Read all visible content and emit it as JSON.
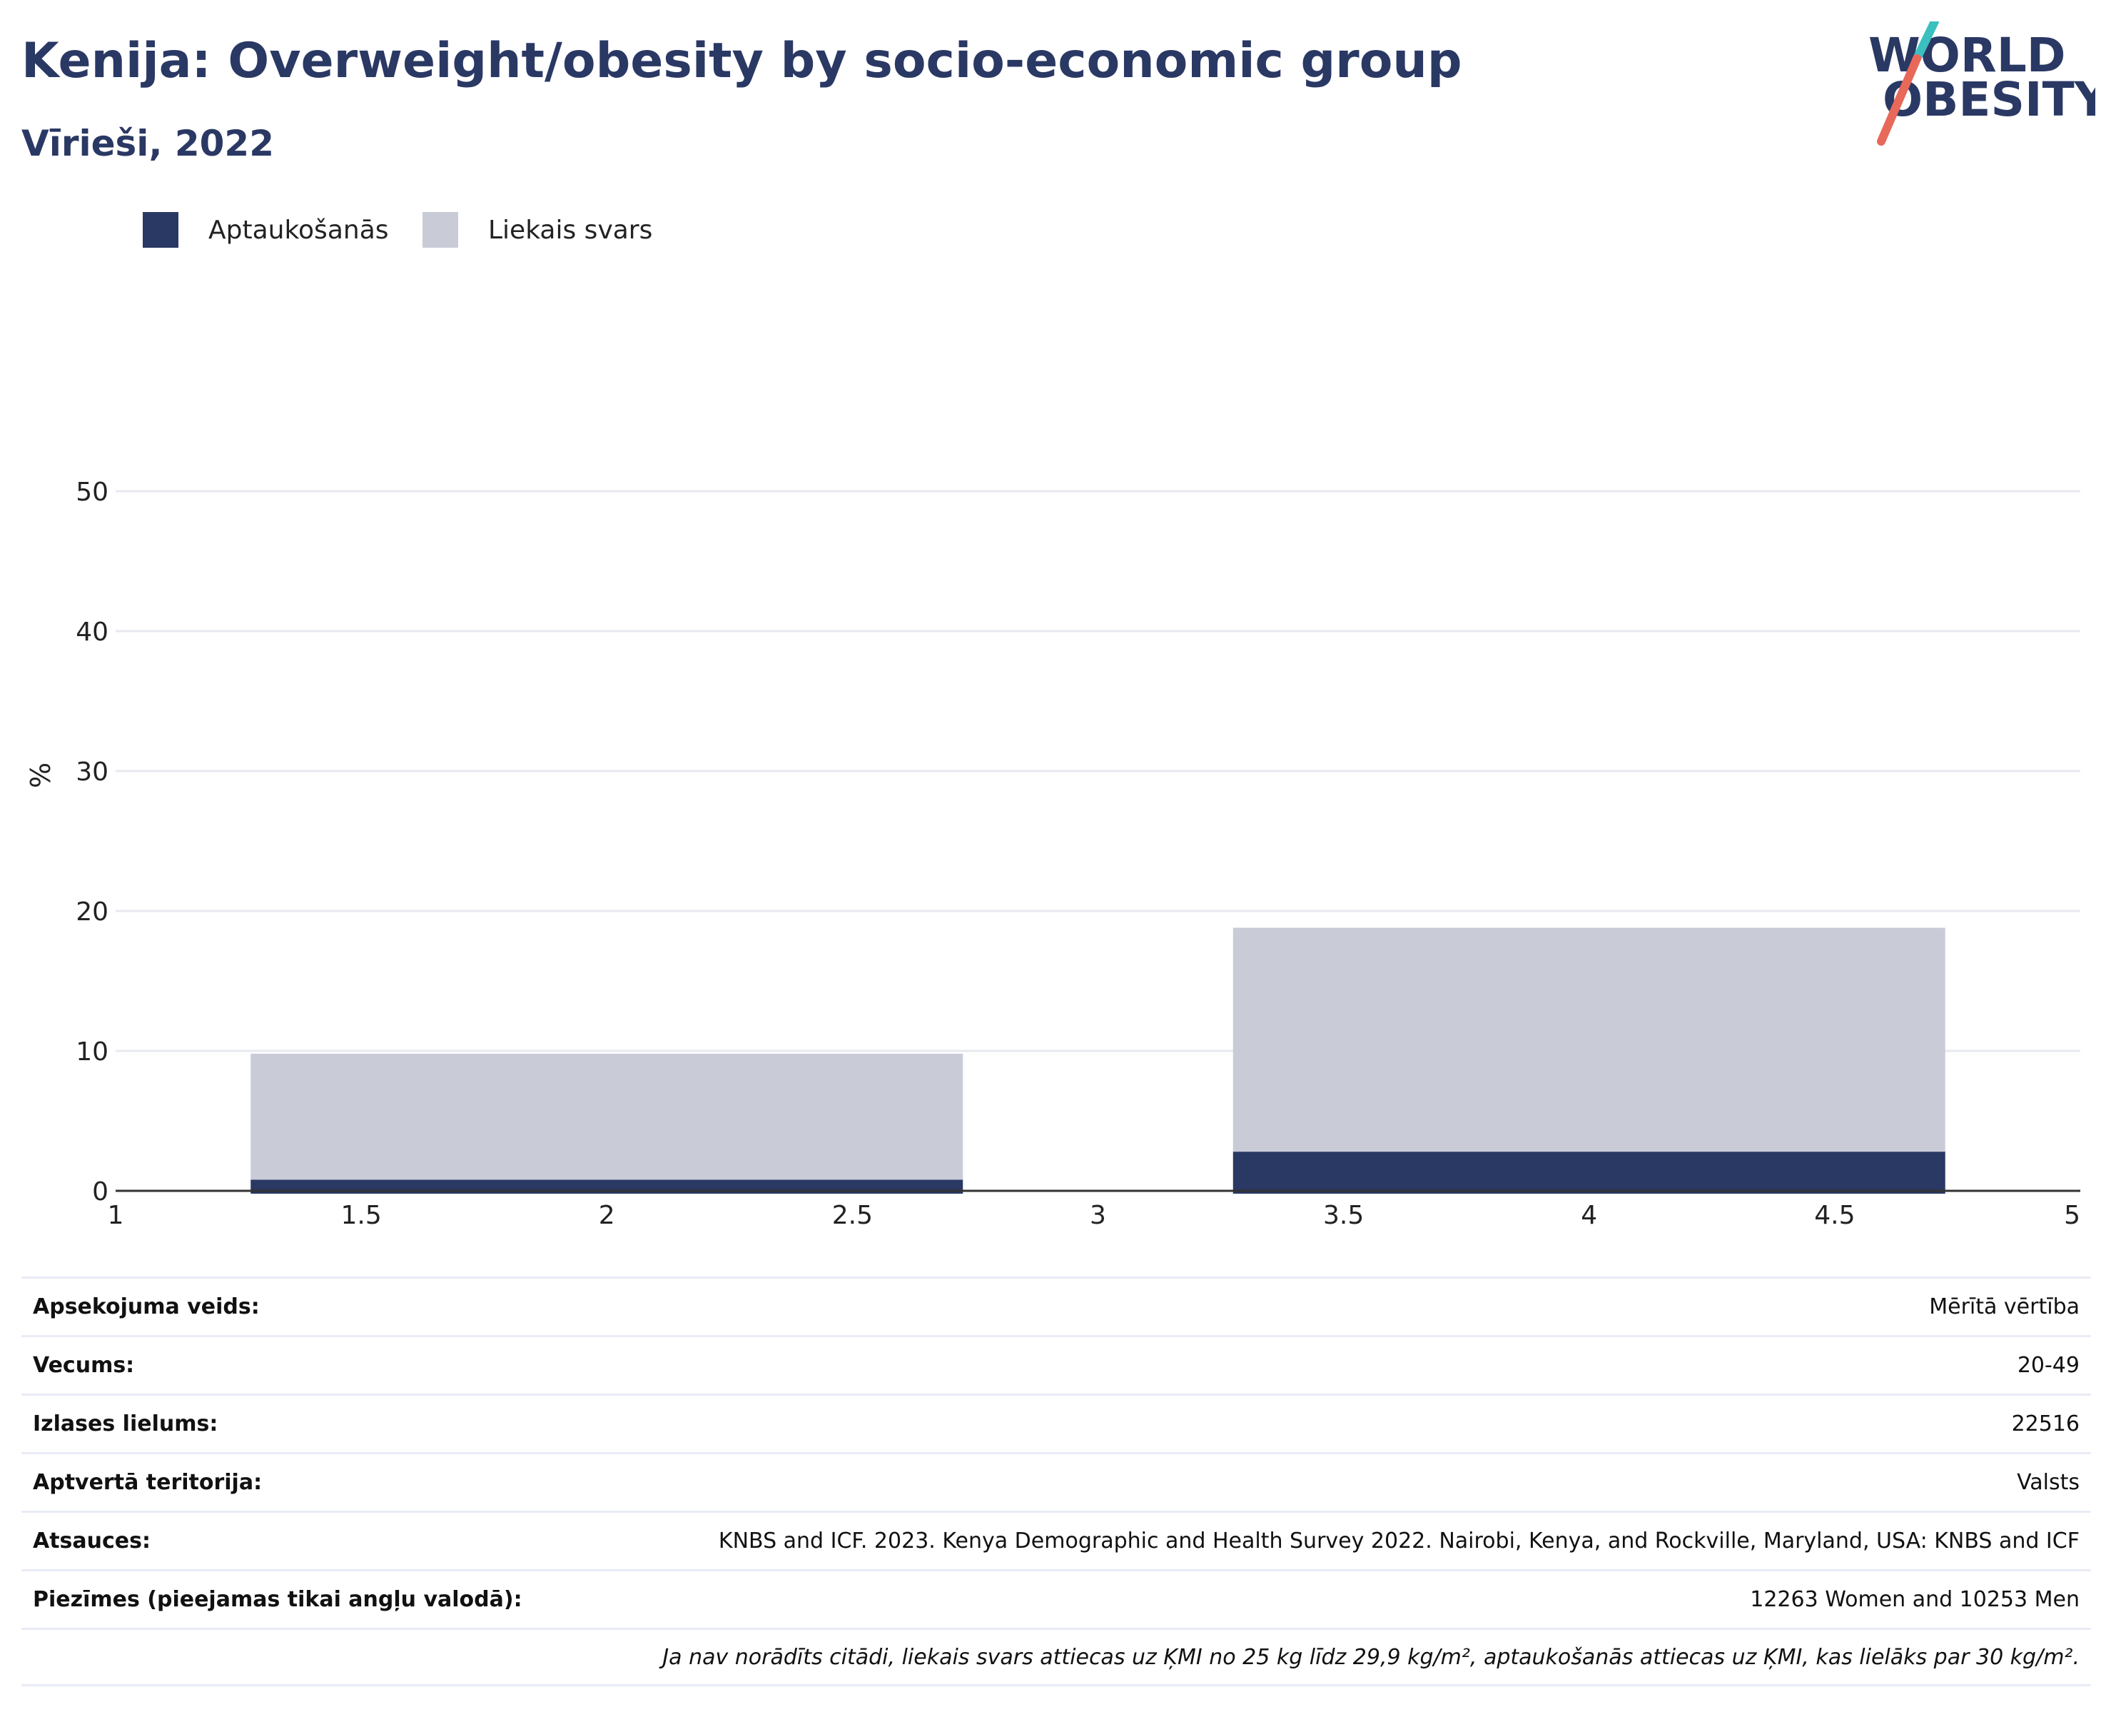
{
  "header": {
    "title": "Kenija: Overweight/obesity by socio-economic group",
    "subtitle": "Vīrieši, 2022"
  },
  "logo": {
    "line1": "WORLD",
    "line2": "OBESITY",
    "colors": {
      "text": "#2a3864",
      "slash_top": "#3bbfbf",
      "slash_bottom": "#e8685a"
    }
  },
  "colors": {
    "obesity": "#2a3864",
    "overweight": "#c9ccd7",
    "grid": "#e7e9f0",
    "axis": "#333333"
  },
  "chart_data": {
    "type": "bar",
    "stacked": true,
    "ylabel": "%",
    "xlim": [
      1,
      5
    ],
    "ylim": [
      0,
      55
    ],
    "x_ticks": [
      1,
      1.5,
      2,
      2.5,
      3,
      3.5,
      4,
      4.5,
      5
    ],
    "x_tick_labels": [
      "1",
      "1.5",
      "2",
      "2.5",
      "3",
      "3.5",
      "4",
      "4.5",
      "5"
    ],
    "y_ticks": [
      0,
      10,
      20,
      30,
      40,
      50
    ],
    "y_tick_labels": [
      "0",
      "10",
      "20",
      "30",
      "40",
      "50"
    ],
    "bar_x": [
      2,
      4
    ],
    "bar_width": 1.45,
    "grid": true,
    "legend_position": "top-left",
    "series": [
      {
        "name": "Aptaukošanās",
        "color": "#2a3864",
        "values": [
          0.8,
          2.8
        ]
      },
      {
        "name": "Liekais svars",
        "color": "#c9ccd7",
        "values": [
          9.0,
          16.0
        ]
      }
    ]
  },
  "info": {
    "rows": [
      {
        "key": "Apsekojuma veids:",
        "value": "Mērītā vērtība"
      },
      {
        "key": "Vecums:",
        "value": "20-49"
      },
      {
        "key": "Izlases lielums:",
        "value": "22516"
      },
      {
        "key": "Aptvertā teritorija:",
        "value": "Valsts"
      },
      {
        "key": "Atsauces:",
        "value": "KNBS and ICF. 2023. Kenya Demographic and Health Survey 2022. Nairobi, Kenya, and Rockville, Maryland, USA: KNBS and ICF"
      },
      {
        "key": "Piezīmes (pieejamas tikai angļu valodā):",
        "value": "12263 Women and 10253 Men"
      }
    ],
    "note": "Ja nav norādīts citādi, liekais svars attiecas uz ĶMI no 25 kg līdz 29,9 kg/m², aptaukošanās attiecas uz ĶMI, kas lielāks par 30 kg/m²."
  }
}
